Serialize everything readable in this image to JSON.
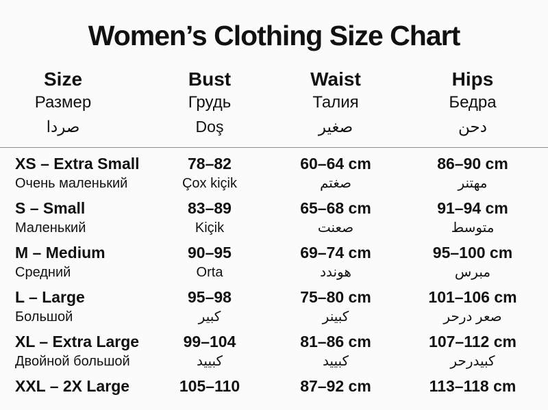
{
  "title": "Women’s Clothing Size Chart",
  "colors": {
    "background": "#fbfbfb",
    "text": "#111111",
    "divider": "#8c8c8c"
  },
  "table": {
    "headers": [
      {
        "en": "Size",
        "ru": "Размер",
        "third": "صردا"
      },
      {
        "en": "Bust",
        "ru": "Грудь",
        "third": "Doş"
      },
      {
        "en": "Waist",
        "ru": "Талия",
        "third": "صغير"
      },
      {
        "en": "Hips",
        "ru": "Бедра",
        "third": "دحن"
      }
    ],
    "rows": [
      {
        "size": "XS – Extra Small",
        "size_sub": "Очень маленький",
        "bust": "78–82",
        "bust_sub": "Çox kiçik",
        "waist": "60–64 cm",
        "waist_sub": "صغتم",
        "hips": "86–90 cm",
        "hips_sub": "مهتنر"
      },
      {
        "size": "S – Small",
        "size_sub": "Маленький",
        "bust": "83–89",
        "bust_sub": "Kiçik",
        "waist": "65–68 cm",
        "waist_sub": "صعنت",
        "hips": "91–94 cm",
        "hips_sub": "متوسط"
      },
      {
        "size": "M – Medium",
        "size_sub": "Средний",
        "bust": "90–95",
        "bust_sub": "Orta",
        "waist": "69–74 cm",
        "waist_sub": "هوندد",
        "hips": "95–100 cm",
        "hips_sub": "مبرس"
      },
      {
        "size": "L – Large",
        "size_sub": "Большой",
        "bust": "95–98",
        "bust_sub": "كبير",
        "waist": "75–80 cm",
        "waist_sub": "كبينر",
        "hips": "101–106 cm",
        "hips_sub": "صعر درحر"
      },
      {
        "size": "XL – Extra Large",
        "size_sub": "Двойной большой",
        "bust": "99–104",
        "bust_sub": "كبييد",
        "waist": "81–86 cm",
        "waist_sub": "كبييد",
        "hips": "107–112 cm",
        "hips_sub": "كبيدرحر"
      },
      {
        "size": "XXL – 2X Large",
        "bust": "105–110",
        "waist": "87–92 cm",
        "hips": "113–118 cm"
      }
    ]
  }
}
